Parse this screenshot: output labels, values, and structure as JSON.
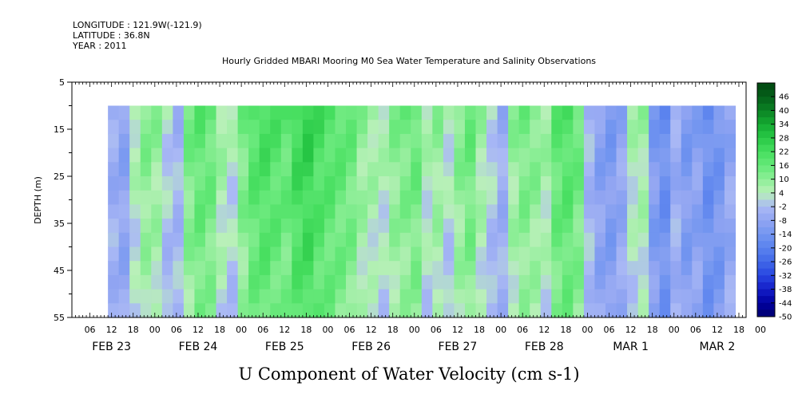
{
  "header": {
    "longitude": "LONGITUDE : 121.9W(-121.9)",
    "latitude": "LATITUDE : 36.8N",
    "year": "YEAR : 2011"
  },
  "chart_data": {
    "type": "heatmap",
    "title": "Hourly Gridded MBARI Mooring M0 Sea Water Temperature and Salinity Observations",
    "xlabel": "U Component of Water Velocity (cm s-1)",
    "ylabel": "DEPTH (m)",
    "ylim": [
      55,
      5
    ],
    "yticks": [
      5,
      15,
      25,
      35,
      45,
      55
    ],
    "hour_tick_labels": [
      "06",
      "12",
      "18",
      "00",
      "06",
      "12",
      "18",
      "00",
      "06",
      "12",
      "18",
      "00",
      "06",
      "12",
      "18",
      "00",
      "06",
      "12",
      "18",
      "00",
      "06",
      "12",
      "18",
      "00",
      "06",
      "12",
      "18",
      "00",
      "06",
      "12",
      "18",
      "00"
    ],
    "date_labels": [
      "FEB 23",
      "FEB 24",
      "FEB 25",
      "FEB 26",
      "FEB 27",
      "FEB 28",
      "MAR  1",
      "MAR  2"
    ],
    "data_depth_range": [
      10,
      55
    ],
    "colorbar": {
      "labels": [
        "46",
        "40",
        "34",
        "28",
        "22",
        "16",
        "10",
        "4",
        "-2",
        "-8",
        "-14",
        "-20",
        "-26",
        "-32",
        "-38",
        "-44",
        "-50"
      ],
      "range": [
        -50,
        52
      ],
      "step": 3
    },
    "columns_x_hours_from_feb23_00": [
      11,
      14,
      17,
      20,
      23,
      26,
      29,
      32,
      35,
      38,
      41,
      44,
      47,
      50,
      53,
      56,
      59,
      62,
      65,
      68,
      71,
      74,
      77,
      80,
      83,
      86,
      89,
      92,
      95,
      98,
      101,
      104,
      107,
      110,
      113,
      116,
      119,
      122,
      125,
      128,
      131,
      134,
      137,
      140,
      143,
      146,
      149,
      152,
      155,
      158,
      161,
      164,
      167,
      170,
      173,
      176,
      179,
      182
    ],
    "column_mean_u": [
      -6,
      -9,
      6,
      12,
      10,
      2,
      -4,
      14,
      18,
      16,
      8,
      4,
      14,
      20,
      22,
      20,
      18,
      24,
      26,
      22,
      20,
      18,
      16,
      10,
      8,
      6,
      12,
      14,
      16,
      6,
      10,
      4,
      12,
      16,
      8,
      2,
      -6,
      10,
      14,
      12,
      8,
      18,
      20,
      16,
      -4,
      -10,
      -12,
      -8,
      6,
      8,
      -12,
      -16,
      -6,
      -12,
      -10,
      -16,
      -14,
      -8
    ]
  }
}
